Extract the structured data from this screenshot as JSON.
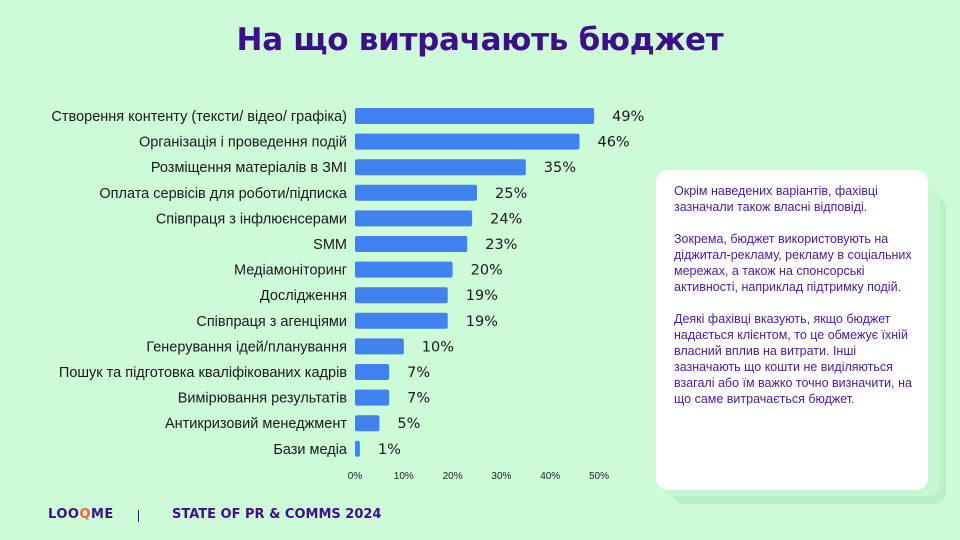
{
  "title": "На що витрачають бюджет",
  "chart_data": {
    "type": "bar",
    "orientation": "horizontal",
    "categories": [
      "Створення контенту (тексти/ відео/ графіка)",
      "Організація і проведення подій",
      "Розміщення матеріалів в ЗМІ",
      "Оплата сервісів для роботи/підписка",
      "Співпраця з інфлюєнсерами",
      "SMM",
      "Медіамоніторинг",
      "Дослідження",
      "Співпраця з агенціями",
      "Генерування ідей/планування",
      "Пошук та підготовка кваліфікованих кадрів",
      "Вимірювання результатів",
      "Антикризовий менеджмент",
      "Бази медіа"
    ],
    "values": [
      49,
      46,
      35,
      25,
      24,
      23,
      20,
      19,
      19,
      10,
      7,
      7,
      5,
      1
    ],
    "value_labels": [
      "49%",
      "46%",
      "35%",
      "25%",
      "24%",
      "23%",
      "20%",
      "19%",
      "19%",
      "10%",
      "7%",
      "7%",
      "5%",
      "1%"
    ],
    "xlim": [
      0,
      50
    ],
    "ticks": [
      "0%",
      "10%",
      "20%",
      "30%",
      "40%",
      "50%"
    ],
    "grid": false,
    "bar_color": "#3f82f0"
  },
  "note": {
    "paragraphs": [
      "Окрім наведених варіантів, фахівці зазначали також власні відповіді.",
      "Зокрема, бюджет використовують на діджитал-рекламу, рекламу в соціальних мережах, а також на спонсорські активності, наприклад підтримку подій.",
      "Деякі фахівці вказують, якщо бюджет надається клієнтом, то це обмежує їхній власний вплив на витрати. Інші зазначають що кошти не виділяються взагалі або їм важко точно визначити, на що саме витрачається бюджет."
    ]
  },
  "footer": {
    "logo_part1": "LOO",
    "logo_part2": "Q",
    "logo_part3": "ME",
    "report": "STATE OF PR & COMMS 2024"
  }
}
